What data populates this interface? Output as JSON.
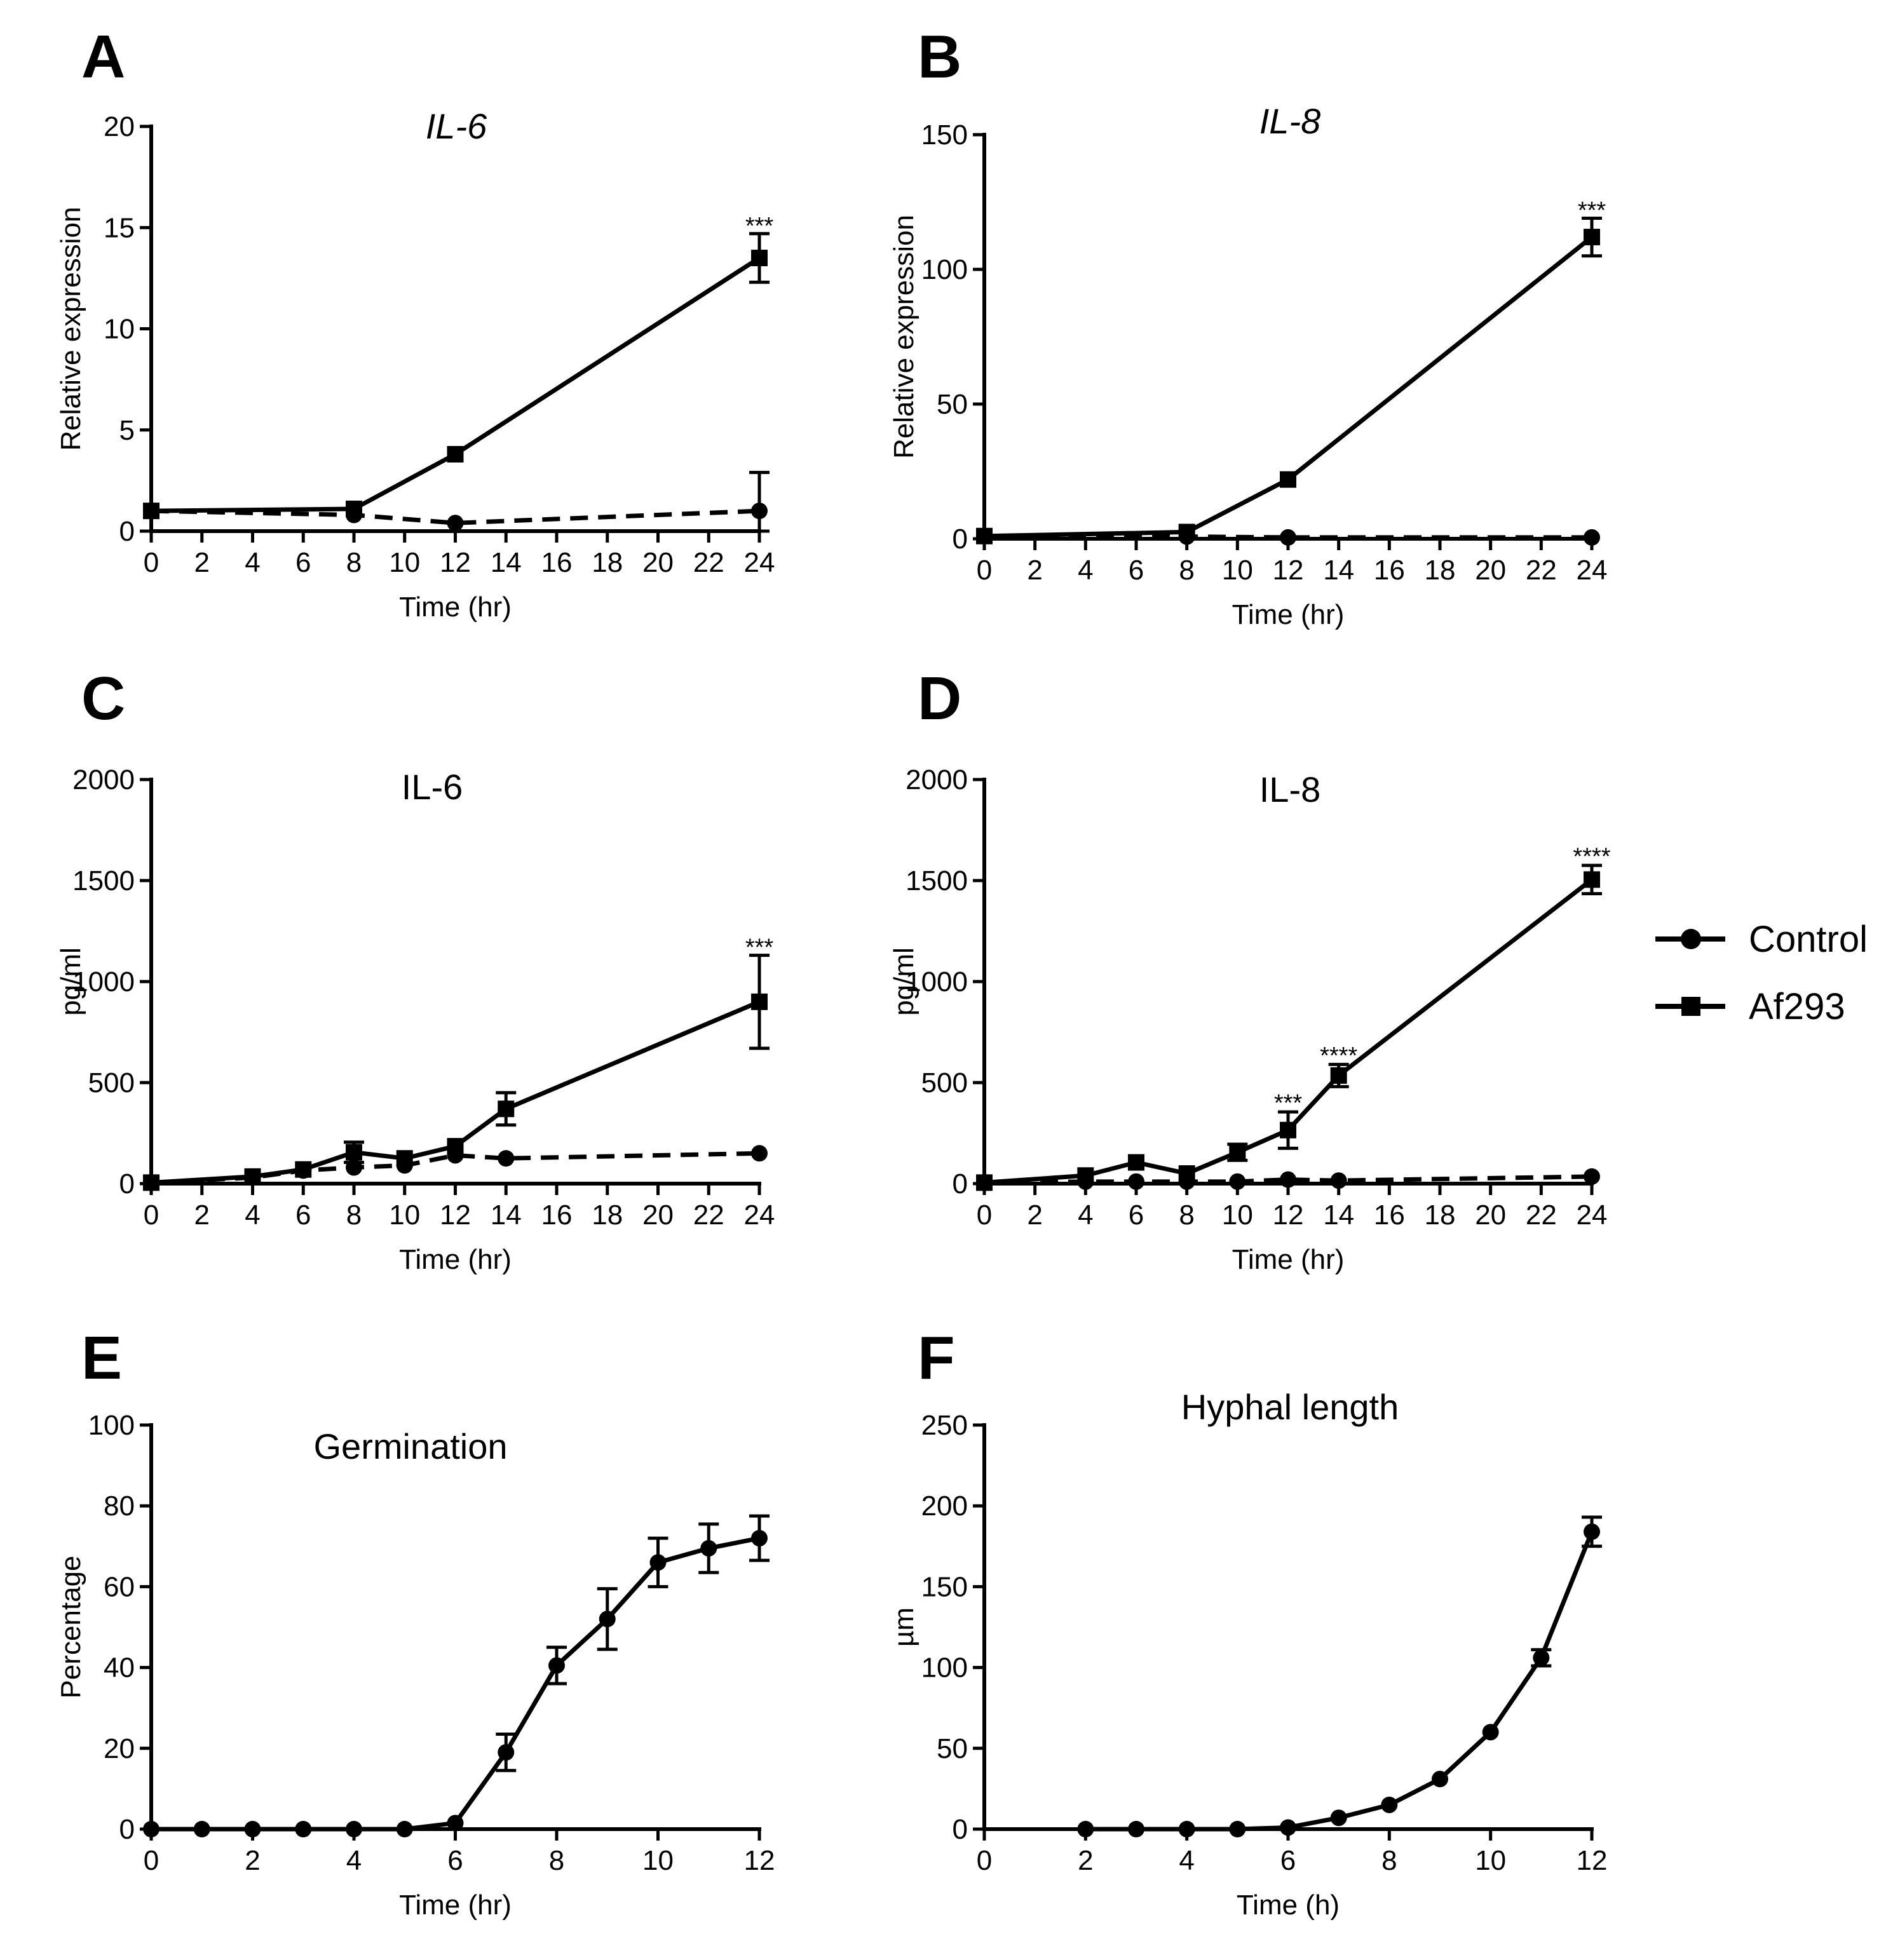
{
  "chart_data": [
    {
      "panel": "A",
      "type": "line",
      "title": "IL-6",
      "title_italic": true,
      "xlabel": "Time (hr)",
      "ylabel": "Relative expression",
      "xlim": [
        0,
        24
      ],
      "ylim": [
        0,
        20
      ],
      "xticks": [
        0,
        2,
        4,
        6,
        8,
        10,
        12,
        14,
        16,
        18,
        20,
        22,
        24
      ],
      "yticks": [
        0,
        5,
        10,
        15,
        20
      ],
      "grid": false,
      "series": [
        {
          "name": "Af293",
          "marker": "square",
          "dash": false,
          "x": [
            0,
            8,
            12,
            24
          ],
          "y": [
            1.0,
            1.1,
            3.8,
            13.5
          ],
          "err": [
            0,
            0,
            0,
            1.2
          ]
        },
        {
          "name": "Control",
          "marker": "circle",
          "dash": true,
          "x": [
            0,
            8,
            12,
            24
          ],
          "y": [
            1.0,
            0.8,
            0.4,
            1.0
          ],
          "err": [
            0,
            0,
            0,
            1.9
          ]
        }
      ],
      "annotations": [
        {
          "x": 24,
          "y": 14.7,
          "text": "***"
        }
      ]
    },
    {
      "panel": "B",
      "type": "line",
      "title": "IL-8",
      "title_italic": true,
      "xlabel": "Time (hr)",
      "ylabel": "Relative expression",
      "xlim": [
        0,
        24
      ],
      "ylim": [
        0,
        150
      ],
      "xticks": [
        0,
        2,
        4,
        6,
        8,
        10,
        12,
        14,
        16,
        18,
        20,
        22,
        24
      ],
      "yticks": [
        0,
        50,
        100,
        150
      ],
      "grid": false,
      "series": [
        {
          "name": "Af293",
          "marker": "square",
          "dash": false,
          "x": [
            0,
            8,
            12,
            24
          ],
          "y": [
            1,
            2.5,
            22,
            112
          ],
          "err": [
            0,
            0,
            0,
            7
          ]
        },
        {
          "name": "Control",
          "marker": "circle",
          "dash": true,
          "x": [
            0,
            8,
            12,
            24
          ],
          "y": [
            1,
            0.8,
            0.5,
            0.5
          ],
          "err": [
            0,
            0,
            0,
            0
          ]
        }
      ],
      "annotations": [
        {
          "x": 24,
          "y": 119,
          "text": "***"
        }
      ]
    },
    {
      "panel": "C",
      "type": "line",
      "title": "IL-6",
      "title_italic": false,
      "xlabel": "Time (hr)",
      "ylabel": "pg/ml",
      "xlim": [
        0,
        24
      ],
      "ylim": [
        0,
        2000
      ],
      "xticks": [
        0,
        2,
        4,
        6,
        8,
        10,
        12,
        14,
        16,
        18,
        20,
        22,
        24
      ],
      "yticks": [
        0,
        500,
        1000,
        1500,
        2000
      ],
      "grid": false,
      "series": [
        {
          "name": "Af293",
          "marker": "square",
          "dash": false,
          "x": [
            0,
            4,
            6,
            8,
            10,
            12,
            14,
            24
          ],
          "y": [
            5,
            35,
            70,
            155,
            125,
            185,
            370,
            900
          ],
          "err": [
            0,
            0,
            0,
            50,
            0,
            0,
            80,
            230
          ]
        },
        {
          "name": "Control",
          "marker": "circle",
          "dash": true,
          "x": [
            0,
            4,
            6,
            8,
            10,
            12,
            14,
            24
          ],
          "y": [
            5,
            30,
            65,
            80,
            90,
            140,
            125,
            150
          ],
          "err": [
            0,
            0,
            0,
            0,
            0,
            0,
            0,
            0
          ]
        }
      ],
      "annotations": [
        {
          "x": 24,
          "y": 1130,
          "text": "***"
        }
      ]
    },
    {
      "panel": "D",
      "type": "line",
      "title": "IL-8",
      "title_italic": false,
      "xlabel": "Time (hr)",
      "ylabel": "pg/ml",
      "xlim": [
        0,
        24
      ],
      "ylim": [
        0,
        2000
      ],
      "xticks": [
        0,
        2,
        4,
        6,
        8,
        10,
        12,
        14,
        16,
        18,
        20,
        22,
        24
      ],
      "yticks": [
        0,
        500,
        1000,
        1500,
        2000
      ],
      "grid": false,
      "series": [
        {
          "name": "Af293",
          "marker": "square",
          "dash": false,
          "x": [
            0,
            4,
            6,
            8,
            10,
            12,
            14,
            24
          ],
          "y": [
            5,
            40,
            105,
            50,
            155,
            265,
            535,
            1505
          ],
          "err": [
            0,
            0,
            0,
            0,
            40,
            90,
            55,
            70
          ]
        },
        {
          "name": "Control",
          "marker": "circle",
          "dash": true,
          "x": [
            0,
            4,
            6,
            8,
            10,
            12,
            14,
            24
          ],
          "y": [
            5,
            10,
            10,
            10,
            10,
            20,
            15,
            35
          ],
          "err": [
            0,
            0,
            0,
            0,
            0,
            0,
            0,
            0
          ]
        }
      ],
      "annotations": [
        {
          "x": 12,
          "y": 360,
          "text": "***"
        },
        {
          "x": 14,
          "y": 595,
          "text": "****"
        },
        {
          "x": 24,
          "y": 1580,
          "text": "****"
        }
      ]
    },
    {
      "panel": "E",
      "type": "line",
      "title": "Germination",
      "title_italic": false,
      "xlabel": "Time (hr)",
      "ylabel": "Percentage",
      "xlim": [
        0,
        12
      ],
      "ylim": [
        0,
        100
      ],
      "xticks": [
        0,
        2,
        4,
        6,
        8,
        10,
        12
      ],
      "yticks": [
        0,
        20,
        40,
        60,
        80,
        100
      ],
      "grid": false,
      "series": [
        {
          "name": "Germination",
          "marker": "circle",
          "dash": false,
          "x": [
            0,
            1,
            2,
            3,
            4,
            5,
            6,
            7,
            8,
            9,
            10,
            11,
            12
          ],
          "y": [
            0,
            0,
            0,
            0,
            0,
            0,
            1.5,
            19,
            40.5,
            52,
            66,
            69.5,
            72
          ],
          "err": [
            0,
            0,
            0,
            0,
            0,
            0,
            0,
            4.5,
            4.5,
            7.5,
            6,
            6,
            5.5
          ]
        }
      ],
      "annotations": []
    },
    {
      "panel": "F",
      "type": "line",
      "title": "Hyphal length",
      "title_italic": false,
      "xlabel": "Time (h)",
      "ylabel": "µm",
      "xlim": [
        0,
        12
      ],
      "ylim": [
        0,
        250
      ],
      "xticks": [
        0,
        2,
        4,
        6,
        8,
        10,
        12
      ],
      "yticks": [
        0,
        50,
        100,
        150,
        200,
        250
      ],
      "grid": false,
      "series": [
        {
          "name": "Hyphal length",
          "marker": "circle",
          "dash": false,
          "x": [
            2,
            3,
            4,
            5,
            6,
            7,
            8,
            9,
            10,
            11,
            12
          ],
          "y": [
            0,
            0,
            0,
            0,
            1,
            7,
            15,
            31,
            60,
            106,
            184
          ],
          "err": [
            0,
            0,
            0,
            0,
            0,
            0,
            0,
            0,
            0,
            5,
            9
          ]
        }
      ],
      "annotations": []
    }
  ],
  "legend": {
    "placement": "right",
    "items": [
      {
        "label": "Control",
        "marker": "circle"
      },
      {
        "label": "Af293",
        "marker": "square"
      }
    ]
  }
}
